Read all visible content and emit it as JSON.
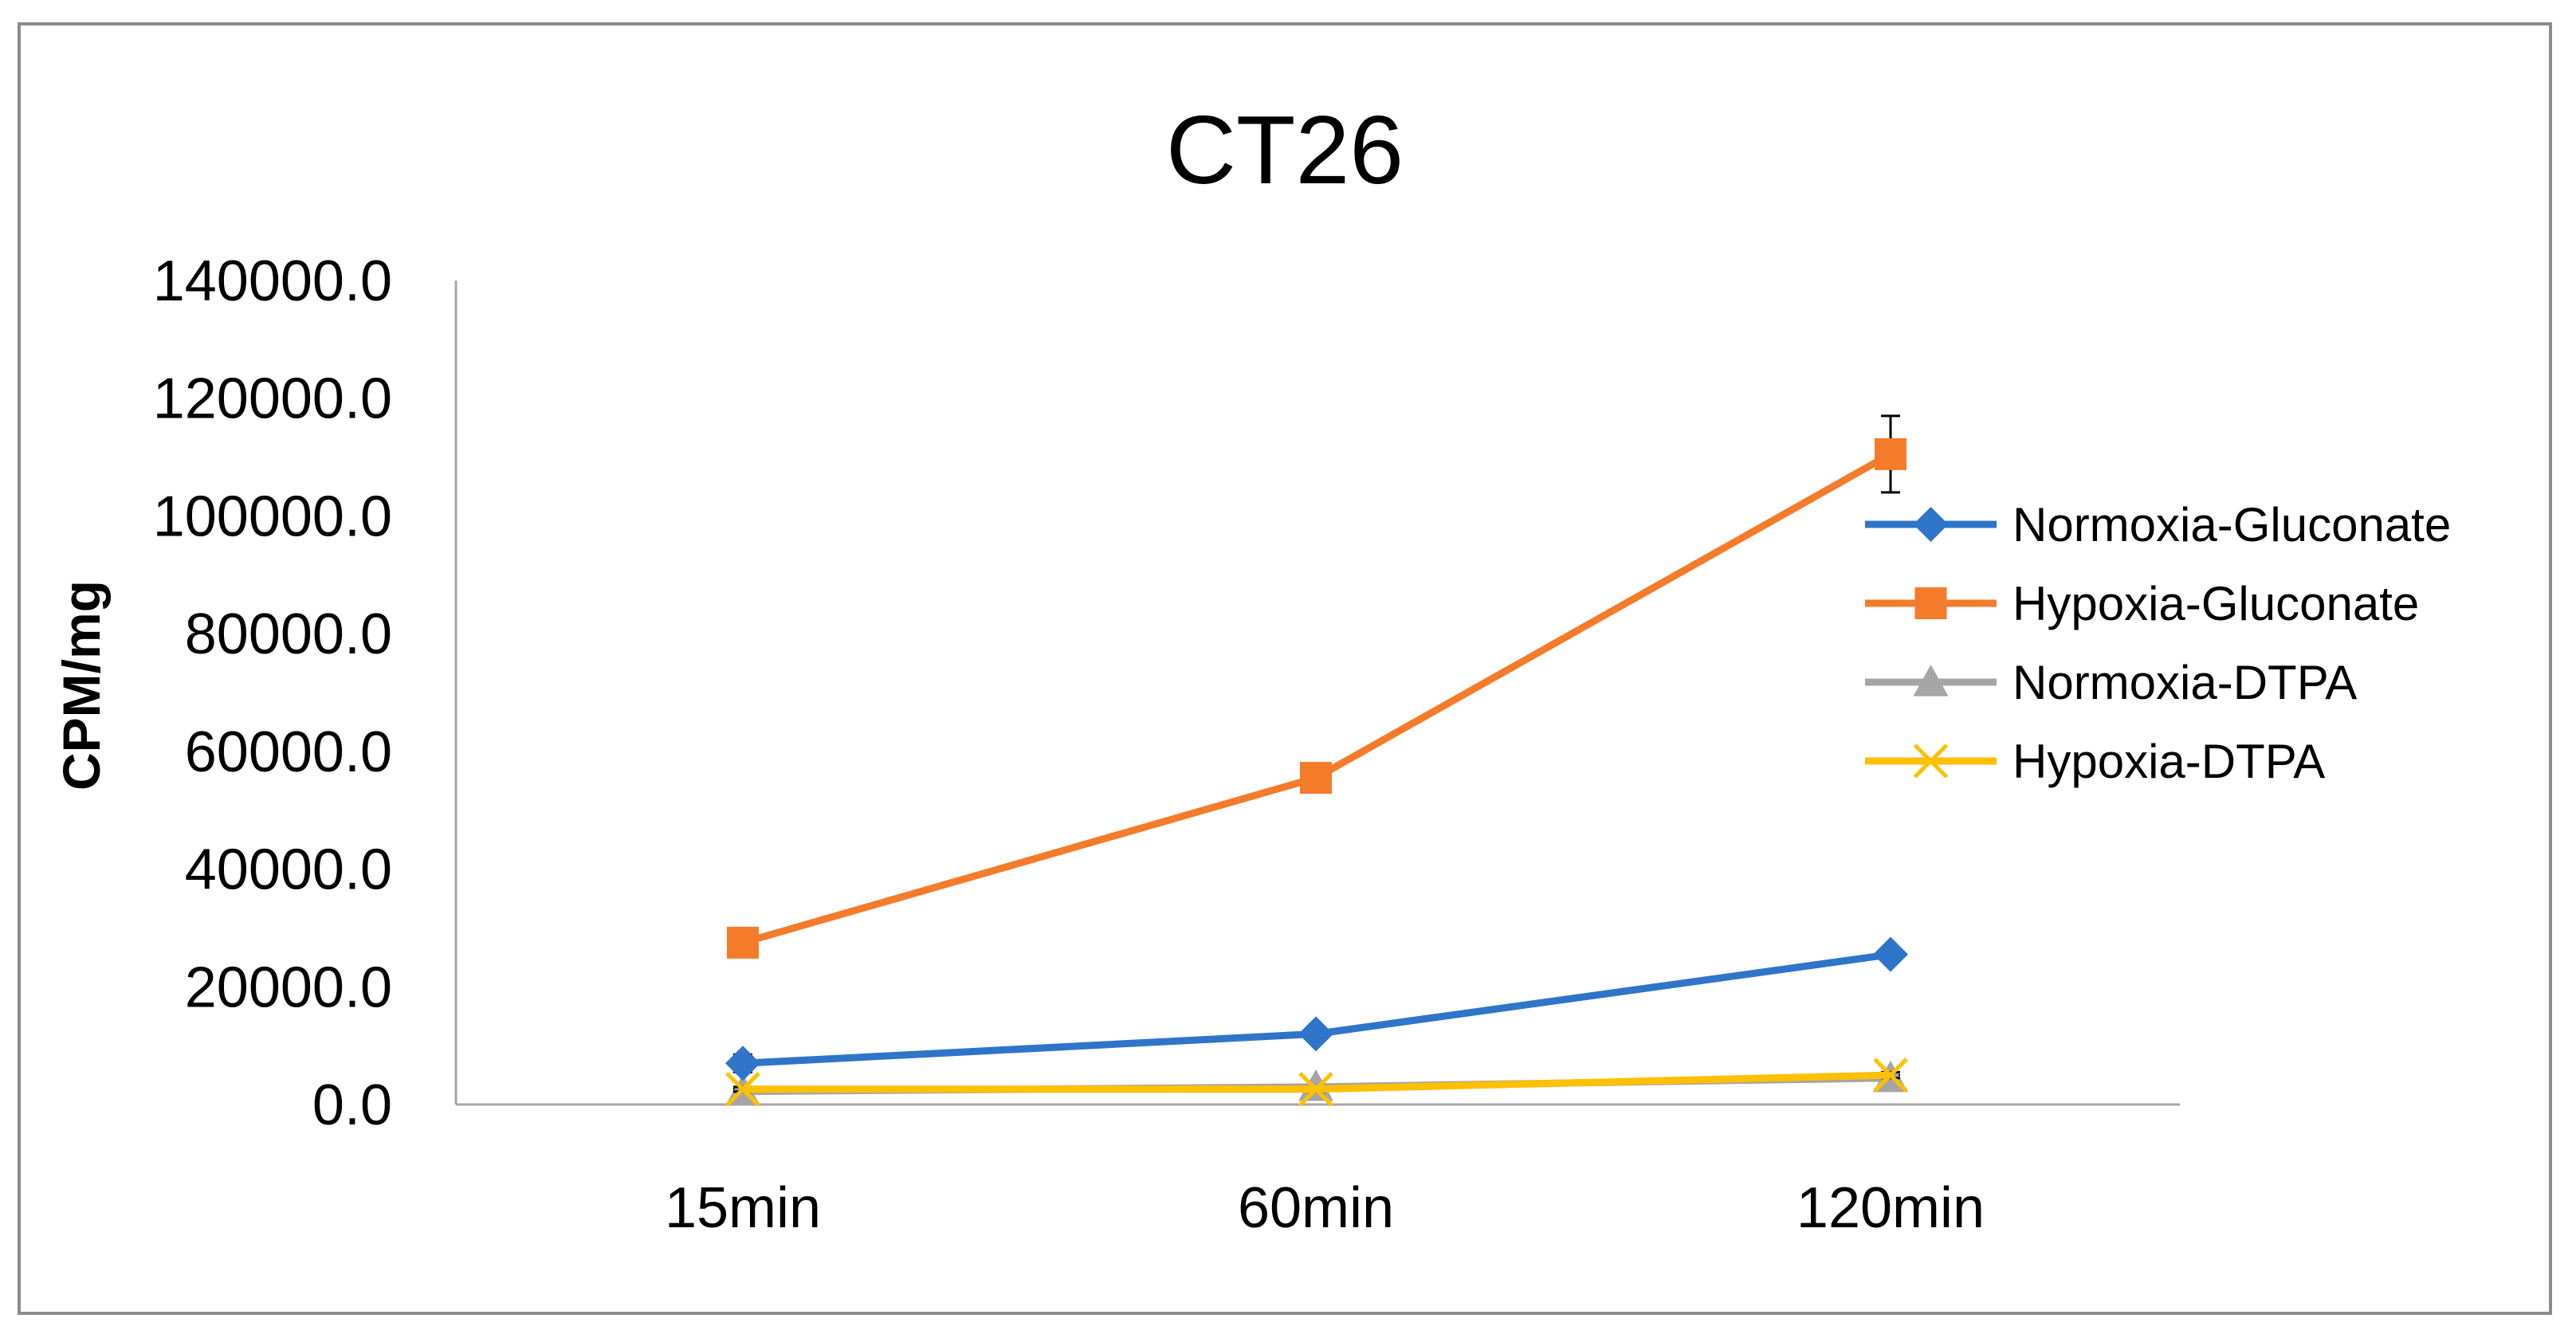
{
  "chart_data": {
    "type": "line",
    "title": "CT26",
    "xlabel": "",
    "ylabel": "CPM/mg",
    "categories": [
      "15min",
      "60min",
      "120min"
    ],
    "ylim": [
      0,
      140000
    ],
    "yticks": [
      "0.0",
      "20000.0",
      "40000.0",
      "60000.0",
      "80000.0",
      "100000.0",
      "120000.0",
      "140000.0"
    ],
    "grid": false,
    "legend_position": "right",
    "series": [
      {
        "name": "Normoxia-Gluconate",
        "color": "#2e75c9",
        "marker": "diamond",
        "values": [
          7000,
          12000,
          25500
        ],
        "error": [
          1500,
          1000,
          1000
        ]
      },
      {
        "name": "Hypoxia-Gluconate",
        "color": "#f47b2a",
        "marker": "square",
        "values": [
          27500,
          55500,
          110500
        ],
        "error": [
          1000,
          1500,
          6500
        ]
      },
      {
        "name": "Normoxia-DTPA",
        "color": "#a5a5a5",
        "marker": "triangle",
        "values": [
          2200,
          3000,
          4500
        ],
        "error": [
          400,
          400,
          500
        ]
      },
      {
        "name": "Hypoxia-DTPA",
        "color": "#ffc000",
        "marker": "x",
        "values": [
          2600,
          2600,
          5000
        ],
        "error": [
          400,
          400,
          500
        ]
      }
    ]
  }
}
